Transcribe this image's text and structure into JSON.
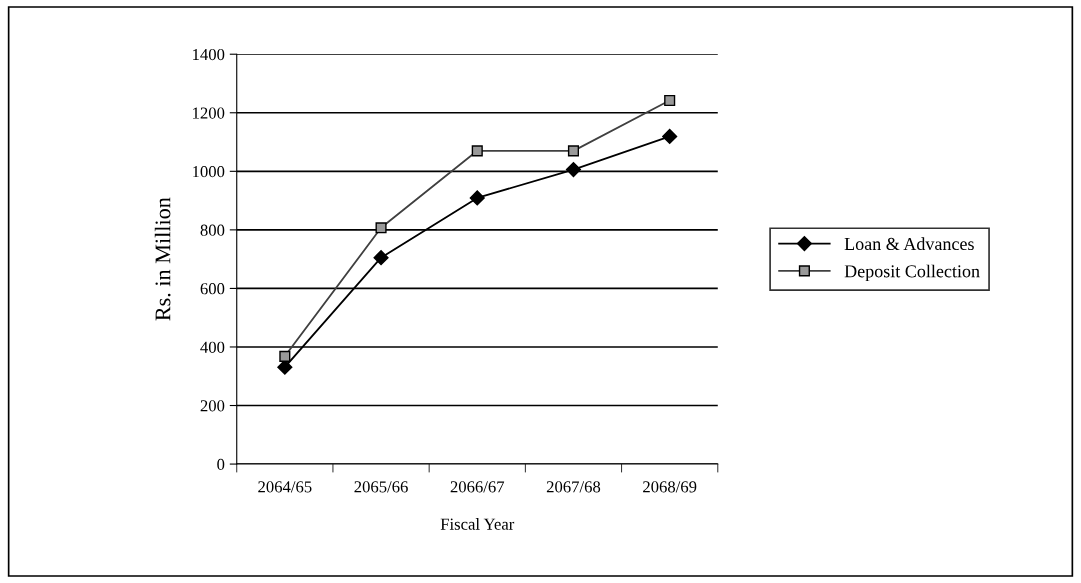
{
  "chart_data": {
    "type": "line",
    "xlabel": "Fiscal Year",
    "ylabel": "Rs. in Million",
    "categories": [
      "2064/65",
      "2065/66",
      "2066/67",
      "2067/68",
      "2068/69"
    ],
    "series": [
      {
        "name": "Loan & Advances",
        "color": "#000000",
        "marker": "diamond",
        "values": [
          331,
          705,
          909,
          1006,
          1119
        ]
      },
      {
        "name": "Deposit Collection",
        "color": "#999999",
        "marker": "square",
        "values": [
          368,
          807,
          1070,
          1070,
          1242
        ]
      }
    ],
    "ylim": [
      0,
      1400
    ],
    "yticks": [
      0,
      200,
      400,
      600,
      800,
      1000,
      1200,
      1400
    ],
    "grid": "y",
    "legend": "right"
  }
}
